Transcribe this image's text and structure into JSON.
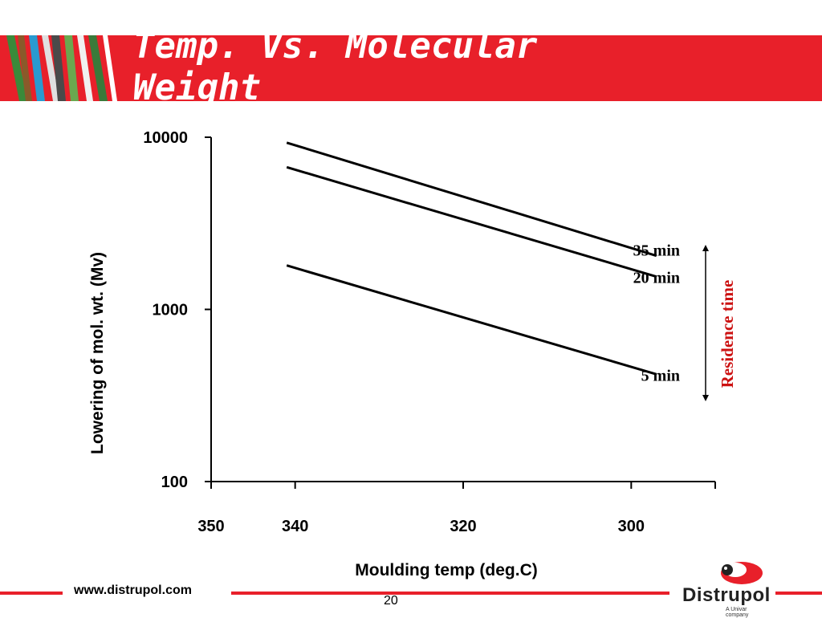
{
  "slide": {
    "title": "Temp. Vs. Molecular Weight",
    "footer_url": "www.distrupol.com",
    "page_number": "20",
    "logo": {
      "name": "Distrupol",
      "tagline": "A Univar company"
    }
  },
  "colors": {
    "banner": "#e8202a",
    "annotation": "#cc1111",
    "line": "#000000"
  },
  "chart_data": {
    "type": "line",
    "title": "",
    "xlabel": "Moulding temp (deg.C)",
    "ylabel": "Lowering of mol. wt. (Mv)",
    "x_ticks": [
      350,
      340,
      320,
      300
    ],
    "x_reversed": true,
    "y_scale": "log",
    "y_ticks": [
      100,
      1000,
      10000
    ],
    "ylim": [
      100,
      10000
    ],
    "xlim": [
      350,
      290
    ],
    "grid": false,
    "series": [
      {
        "name": "35 min",
        "x": [
          341,
          297
        ],
        "y": [
          9300,
          2050
        ]
      },
      {
        "name": "20 min",
        "x": [
          341,
          297
        ],
        "y": [
          6700,
          1550
        ]
      },
      {
        "name": "5 min",
        "x": [
          341,
          297
        ],
        "y": [
          1800,
          420
        ]
      }
    ],
    "annotations": [
      {
        "text": "Residence time",
        "arrow": "vertical-double"
      }
    ]
  }
}
